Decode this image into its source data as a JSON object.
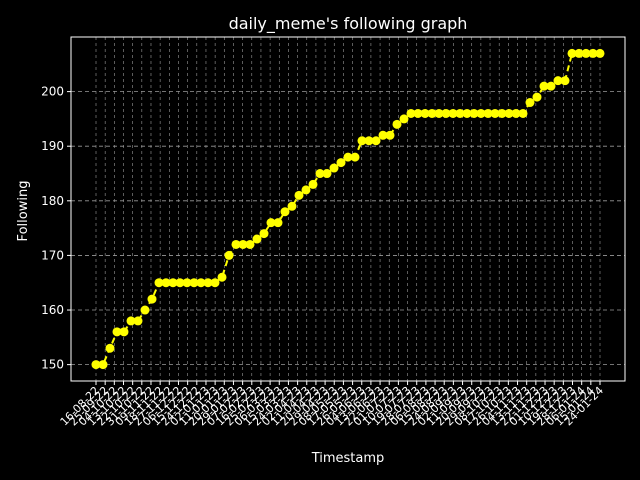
{
  "chart_data": {
    "type": "line",
    "title": "daily_meme's following graph",
    "xlabel": "Timestamp",
    "ylabel": "Following",
    "ylim": [
      147,
      210
    ],
    "yticks": [
      150,
      160,
      170,
      180,
      190,
      200
    ],
    "grid": true,
    "x_tick_labels": [
      "16-08-22",
      "25-09-22",
      "04-10-22",
      "13-10-22",
      "22-10-22",
      "31-10-22",
      "09-11-22",
      "18-11-22",
      "27-11-22",
      "06-12-22",
      "15-12-22",
      "24-12-22",
      "02-01-23",
      "11-01-23",
      "20-01-23",
      "29-01-23",
      "07-02-23",
      "16-02-23",
      "25-02-23",
      "06-03-23",
      "15-03-23",
      "24-03-23",
      "02-04-23",
      "11-04-23",
      "20-04-23",
      "29-04-23",
      "08-05-23",
      "17-05-23",
      "26-05-23",
      "04-06-23",
      "13-06-23",
      "22-06-23",
      "01-07-23",
      "10-07-23",
      "19-07-23",
      "28-07-23",
      "06-08-23",
      "15-08-23",
      "24-08-23",
      "02-09-23",
      "11-09-23",
      "20-09-23",
      "29-09-23",
      "08-10-23",
      "17-10-23",
      "26-10-23",
      "04-11-23",
      "13-11-23",
      "22-11-23",
      "01-12-23",
      "10-12-23",
      "19-12-23",
      "28-12-23",
      "06-01-24",
      "15-01-24",
      "24-01-24"
    ],
    "series": [
      {
        "color": "#ffff00",
        "values": [
          150,
          150,
          153,
          156,
          156,
          158,
          158,
          160,
          162,
          165,
          165,
          165,
          165,
          165,
          165,
          165,
          165,
          165,
          166,
          170,
          172,
          172,
          172,
          173,
          174,
          176,
          176,
          178,
          179,
          181,
          182,
          183,
          185,
          185,
          186,
          187,
          188,
          188,
          191,
          191,
          191,
          192,
          192,
          194,
          195,
          196,
          196,
          196,
          196,
          196,
          196,
          196,
          196,
          196,
          196,
          196,
          196,
          196,
          196,
          196,
          196,
          196,
          198,
          199,
          201,
          201,
          202,
          202,
          207,
          207,
          207,
          207,
          207
        ]
      }
    ]
  }
}
